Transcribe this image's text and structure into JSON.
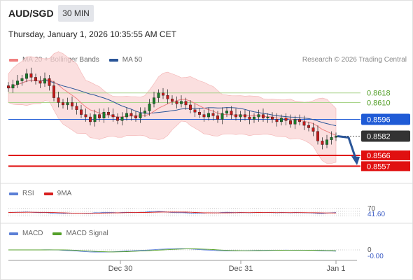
{
  "header": {
    "symbol": "AUD/SGD",
    "timeframe": "30 MIN",
    "datetime": "Thursday, January 1, 2026 10:35:55 AM CET"
  },
  "credit": "Research © 2026 Trading Central",
  "legend_main": [
    {
      "label": "MA 20 + Bollinger Bands",
      "color": "#f08080"
    },
    {
      "label": "MA 50",
      "color": "#2a5598"
    }
  ],
  "legend_rsi": [
    {
      "label": "RSI",
      "color": "#5b7fd6"
    },
    {
      "label": "9MA",
      "color": "#d81e1e"
    }
  ],
  "legend_macd": [
    {
      "label": "MACD",
      "color": "#5b7fd6"
    },
    {
      "label": "MACD Signal",
      "color": "#55a02a"
    }
  ],
  "colors": {
    "up": "#1a7a2a",
    "down": "#c21a1a",
    "band": "#f9d4d4",
    "ma20": "#f08080",
    "ma50": "#2a5598",
    "resistance": "#55a02a",
    "pivot": "#1f5bd6",
    "support": "#e01010",
    "last": "#333333",
    "arrow": "#2a5598"
  },
  "chart_data": {
    "type": "candlestick",
    "x_ticks": [
      "Dec 30",
      "Dec 31",
      "Jan 1"
    ],
    "y_range": [
      0.8545,
      0.864
    ],
    "price_series_approx": [
      0.8622,
      0.8625,
      0.8628,
      0.863,
      0.8634,
      0.8631,
      0.8628,
      0.8626,
      0.863,
      0.8624,
      0.8614,
      0.861,
      0.8608,
      0.861,
      0.8607,
      0.8604,
      0.86,
      0.8598,
      0.8594,
      0.86,
      0.8597,
      0.8602,
      0.86,
      0.8598,
      0.8595,
      0.8598,
      0.8601,
      0.8599,
      0.8597,
      0.8601,
      0.8603,
      0.8609,
      0.8614,
      0.8618,
      0.8616,
      0.8613,
      0.8611,
      0.8609,
      0.8611,
      0.8608,
      0.8604,
      0.8602,
      0.86,
      0.8598,
      0.8601,
      0.8599,
      0.8596,
      0.8601,
      0.8603,
      0.86,
      0.8598,
      0.86,
      0.8598,
      0.8596,
      0.8598,
      0.86,
      0.8597,
      0.8598,
      0.8596,
      0.8594,
      0.8597,
      0.8595,
      0.8592,
      0.8596,
      0.8594,
      0.8591,
      0.8589,
      0.8586,
      0.8578,
      0.8575,
      0.8579,
      0.8581,
      0.8582
    ],
    "levels": [
      {
        "value": "0.8618",
        "type": "resistance"
      },
      {
        "value": "0.8610",
        "type": "resistance"
      },
      {
        "value": "0.8596",
        "type": "pivot"
      },
      {
        "value": "0.8582",
        "type": "last"
      },
      {
        "value": "0.8566",
        "type": "support"
      },
      {
        "value": "0.8557",
        "type": "support"
      }
    ],
    "rsi": {
      "level": "70",
      "value": "41.60",
      "level_value": 70,
      "current": 41.6,
      "ylim": [
        0,
        100
      ]
    },
    "macd": {
      "zero_label": "0",
      "value": "-0.00",
      "current": 0.0
    }
  }
}
